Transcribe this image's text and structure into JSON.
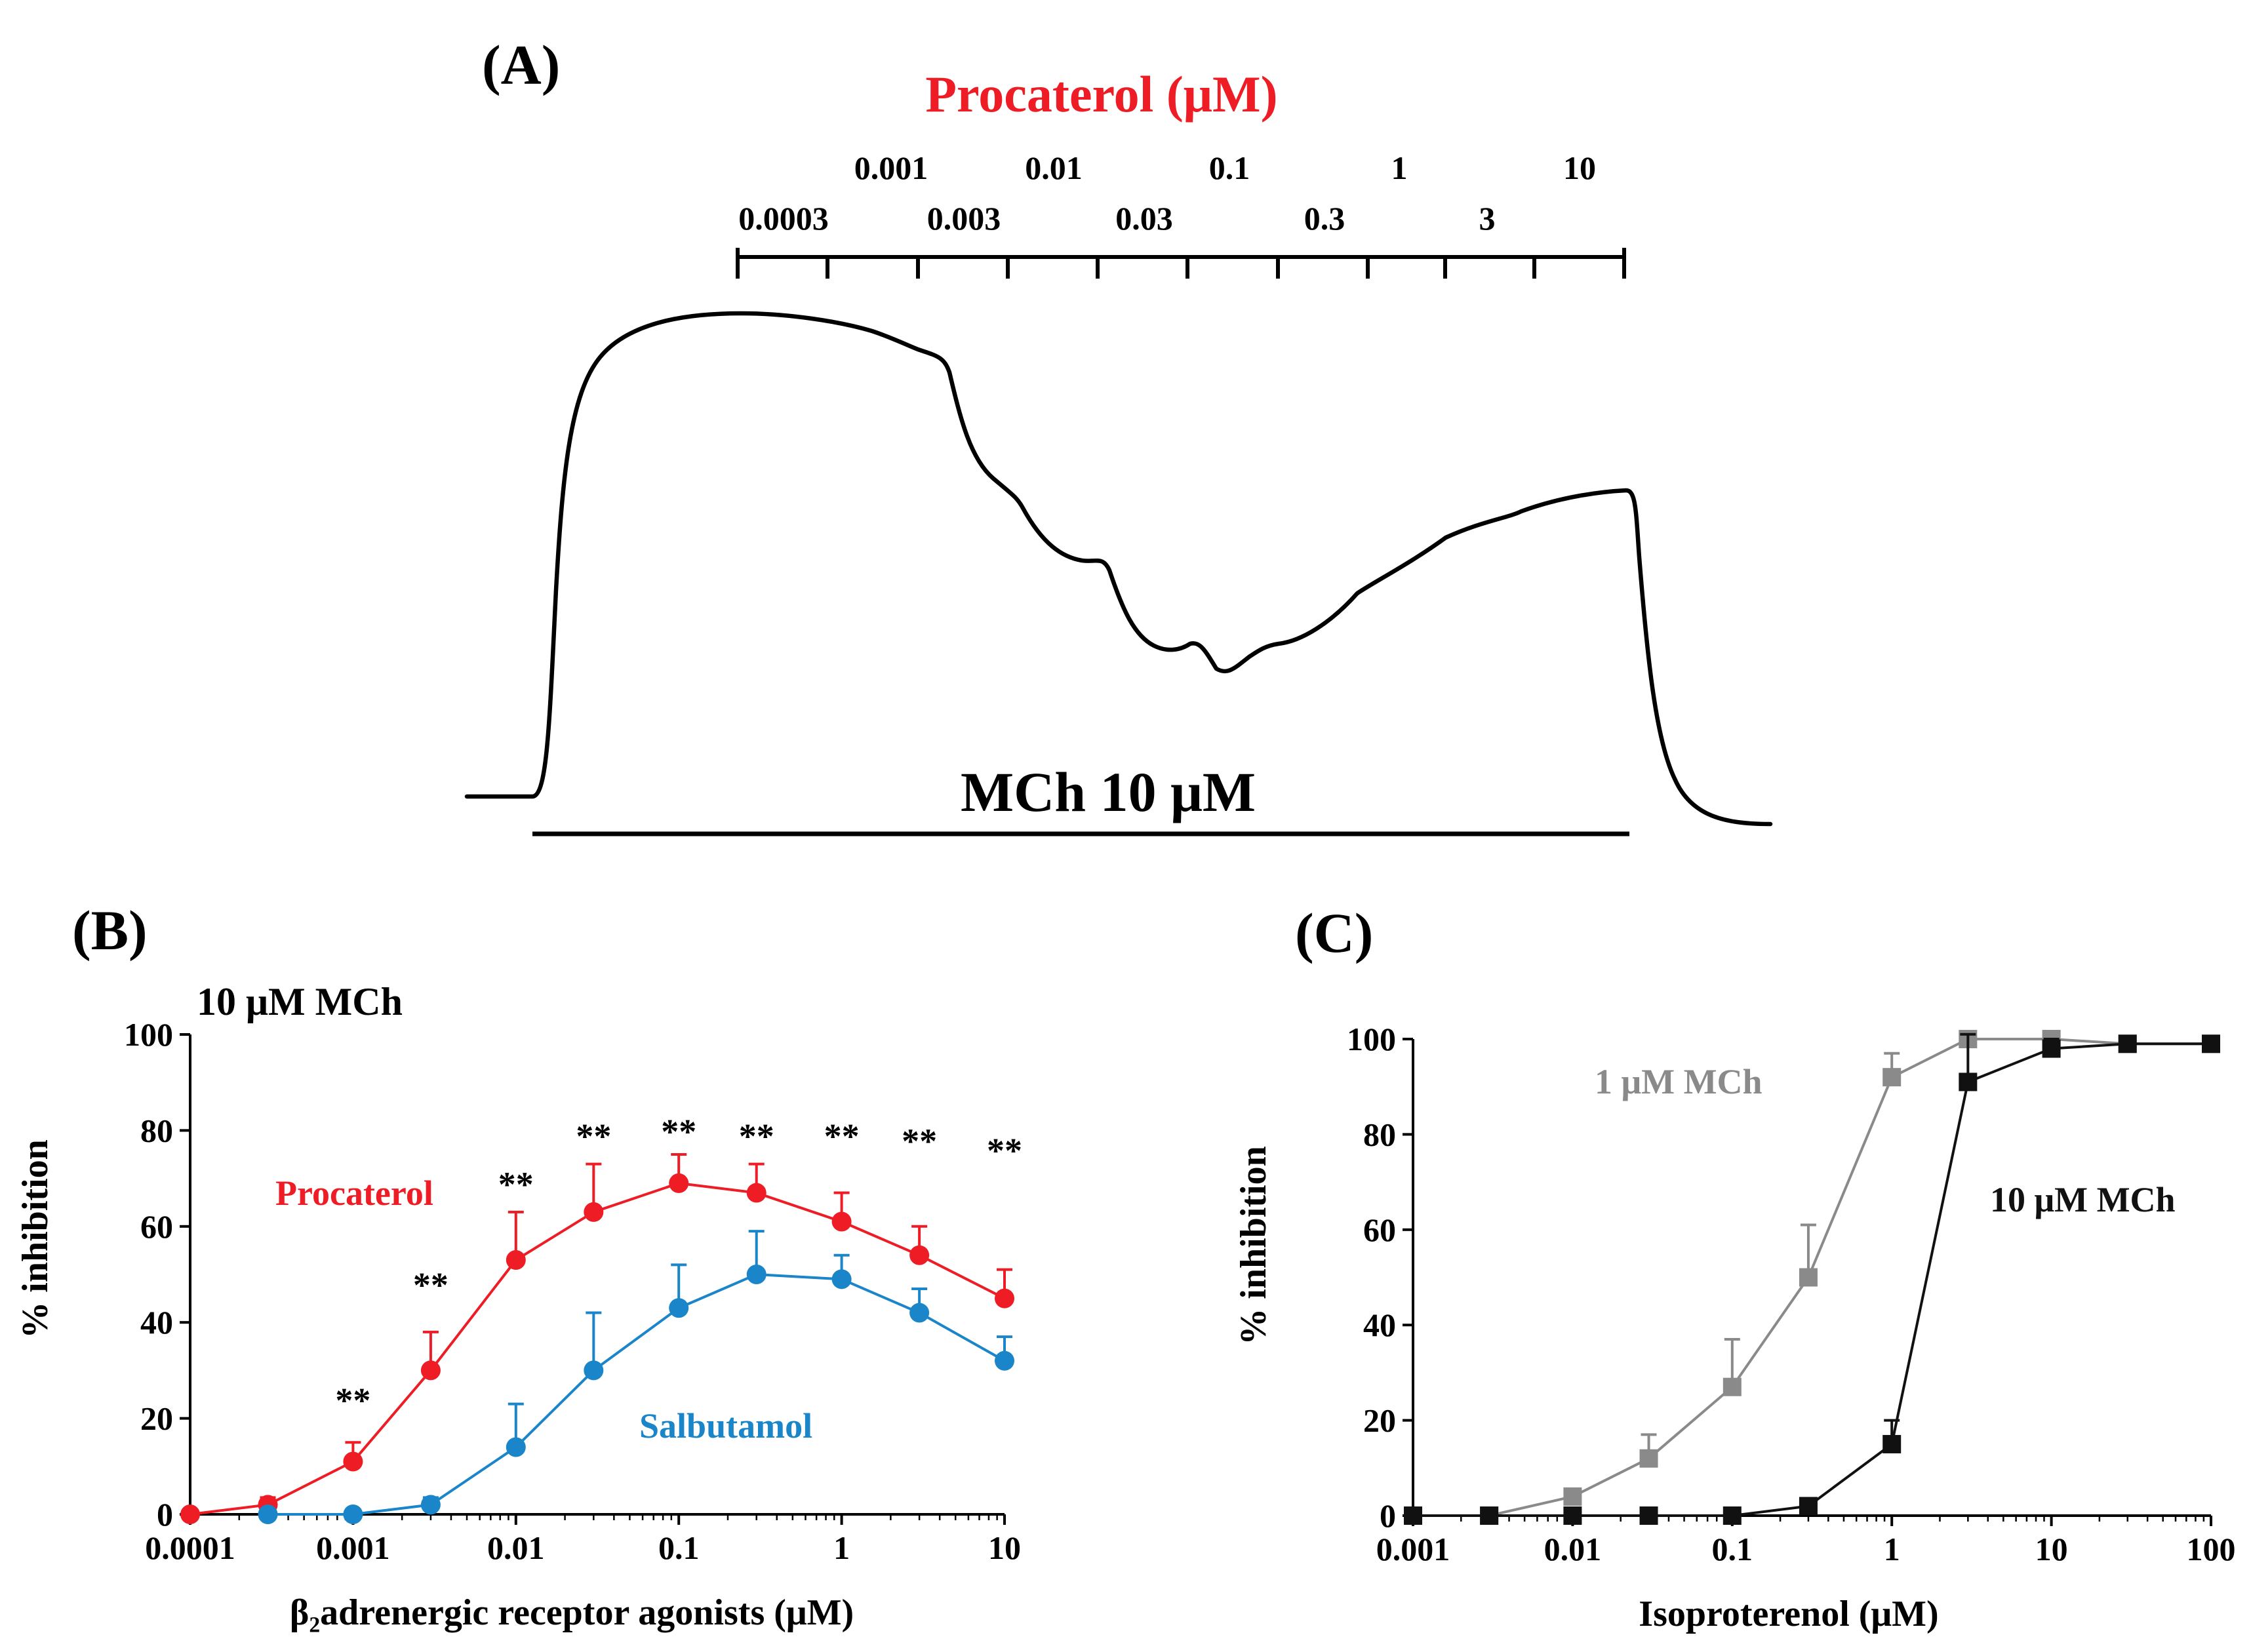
{
  "panel_a": {
    "label": "(A)",
    "title": "Procaterol (μM)",
    "title_color": "#ee1c24",
    "conc_row1": [
      "0.001",
      "0.01",
      "0.1",
      "1",
      "10"
    ],
    "conc_row2": [
      "0.0003",
      "0.003",
      "0.03",
      "0.3",
      "3"
    ],
    "mch_label": "MCh 10 μM"
  },
  "chart_data": [
    {
      "id": "B",
      "type": "line",
      "panel_label": "(B)",
      "condition": "10 μM MCh",
      "xscale": "log",
      "xlim": [
        0.0001,
        10
      ],
      "xticks": [
        "0.0001",
        "0.001",
        "0.01",
        "0.1",
        "1",
        "10"
      ],
      "ylim": [
        0,
        100
      ],
      "yticks": [
        "0",
        "20",
        "40",
        "60",
        "80",
        "100"
      ],
      "xlabel": "β₂adrenergic receptor agonists (μM)",
      "ylabel": "% inhibition",
      "x": [
        0.0001,
        0.0003,
        0.001,
        0.003,
        0.01,
        0.03,
        0.1,
        0.3,
        1,
        3,
        10
      ],
      "series": [
        {
          "name": "Procaterol",
          "color": "#ee1c24",
          "values": [
            0,
            2,
            11,
            30,
            53,
            63,
            69,
            67,
            61,
            54,
            45
          ],
          "err": [
            0,
            1.5,
            4,
            8,
            10,
            10,
            6,
            6,
            6,
            6,
            6
          ]
        },
        {
          "name": "Salbutamol",
          "color": "#1a85c8",
          "values": [
            null,
            0,
            0,
            2,
            14,
            30,
            43,
            50,
            49,
            42,
            32
          ],
          "err": [
            0,
            0.5,
            0.5,
            1.5,
            9,
            12,
            9,
            9,
            5,
            5,
            5
          ]
        }
      ],
      "annotations": {
        "marker": "**",
        "x": [
          0.001,
          0.003,
          0.01,
          0.03,
          0.1,
          0.3,
          1,
          3,
          10
        ],
        "y": [
          24,
          48,
          69,
          79,
          80,
          79,
          79,
          78,
          76
        ]
      }
    },
    {
      "id": "C",
      "type": "line",
      "panel_label": "(C)",
      "xscale": "log",
      "xlim": [
        0.001,
        100
      ],
      "xticks": [
        "0.001",
        "0.01",
        "0.1",
        "1",
        "10",
        "100"
      ],
      "ylim": [
        0,
        100
      ],
      "yticks": [
        "0",
        "20",
        "40",
        "60",
        "80",
        "100"
      ],
      "xlabel": "Isoproterenol (μM)",
      "ylabel": "% inhibition",
      "x": [
        0.001,
        0.003,
        0.01,
        0.03,
        0.1,
        0.3,
        1,
        3,
        10,
        30,
        100
      ],
      "series": [
        {
          "name": "1 μM MCh",
          "color": "#8a8a8a",
          "values": [
            0,
            0,
            4,
            12,
            27,
            50,
            92,
            100,
            100,
            99,
            99
          ],
          "err": [
            0,
            0,
            1.5,
            5,
            10,
            11,
            5,
            0,
            0,
            0,
            0
          ]
        },
        {
          "name": "10 μM MCh",
          "color": "#111111",
          "values": [
            0,
            0,
            0,
            0,
            0,
            2,
            15,
            91,
            98,
            99,
            99
          ],
          "err": [
            0,
            0,
            0,
            0,
            0,
            1,
            5,
            10,
            2,
            0,
            0
          ]
        }
      ]
    }
  ]
}
